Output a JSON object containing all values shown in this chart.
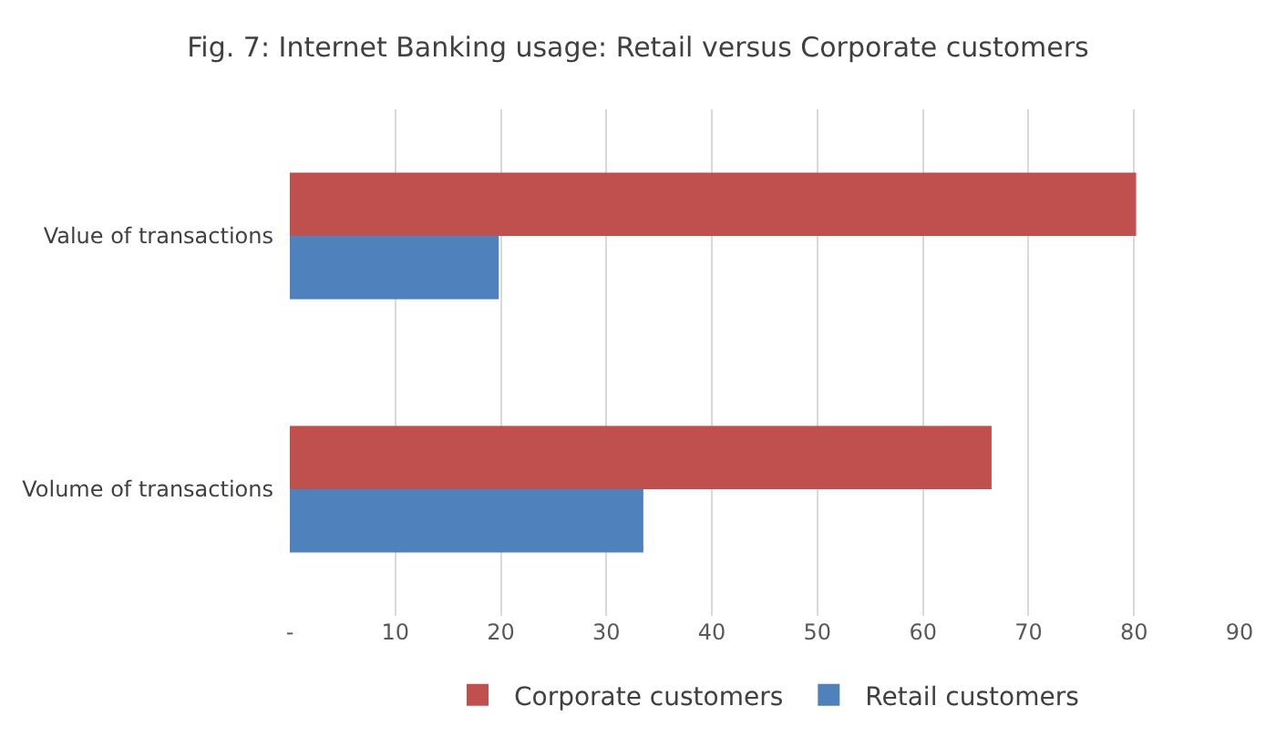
{
  "chart_data": {
    "type": "bar",
    "orientation": "horizontal",
    "title": "Fig. 7: Internet Banking usage: Retail versus Corporate customers",
    "categories": [
      "Value of transactions",
      "Volume of transactions"
    ],
    "series": [
      {
        "name": "Corporate customers",
        "color": "#c0504d",
        "values": [
          80.2,
          66.5
        ]
      },
      {
        "name": "Retail customers",
        "color": "#4f81bd",
        "values": [
          19.8,
          33.5
        ]
      }
    ],
    "xlim": [
      0,
      90
    ],
    "xticks": [
      {
        "value": 0,
        "label": "-"
      },
      10,
      20,
      30,
      40,
      50,
      60,
      70,
      80,
      90
    ],
    "grid": "x",
    "legend": "bottom"
  }
}
